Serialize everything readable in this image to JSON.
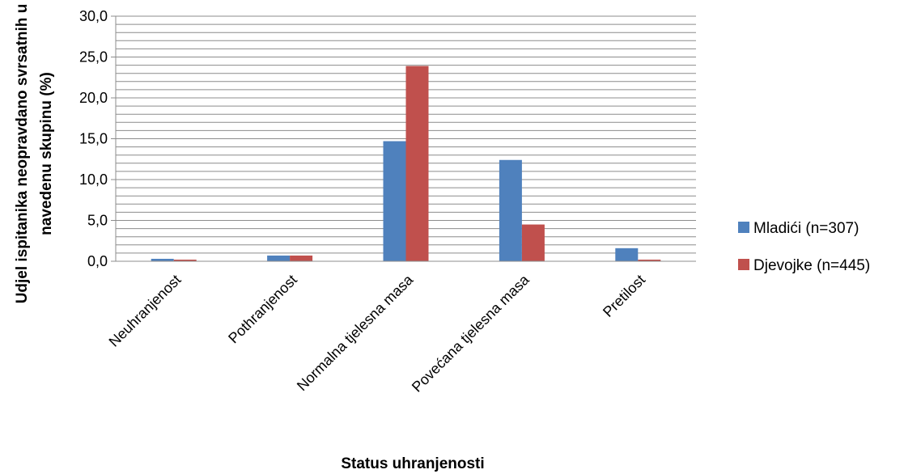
{
  "chart_data": {
    "type": "bar",
    "categories": [
      "Neuhranjenost",
      "Pothranjenost",
      "Normalna tjelesna masa",
      "Povećana tjelesna masa",
      "Pretilost"
    ],
    "series": [
      {
        "name": "Mladići (n=307)",
        "color": "#4F81BD",
        "values": [
          0.3,
          0.7,
          14.7,
          12.4,
          1.6
        ]
      },
      {
        "name": "Djevojke (n=445)",
        "color": "#C0504D",
        "values": [
          0.2,
          0.7,
          23.9,
          4.5,
          0.2
        ]
      }
    ],
    "y_ticks": [
      "0,0",
      "5,0",
      "10,0",
      "15,0",
      "20,0",
      "25,0",
      "30,0"
    ],
    "xlabel": "Status uhranjenosti",
    "ylabel_lines": [
      "Udjel ispitanika neopravdano svrsatnih u",
      "navedenu skupinu (%)"
    ],
    "ylim": [
      0,
      30
    ],
    "grid": true,
    "minor_grid_step": 1,
    "legend_position": "right"
  }
}
